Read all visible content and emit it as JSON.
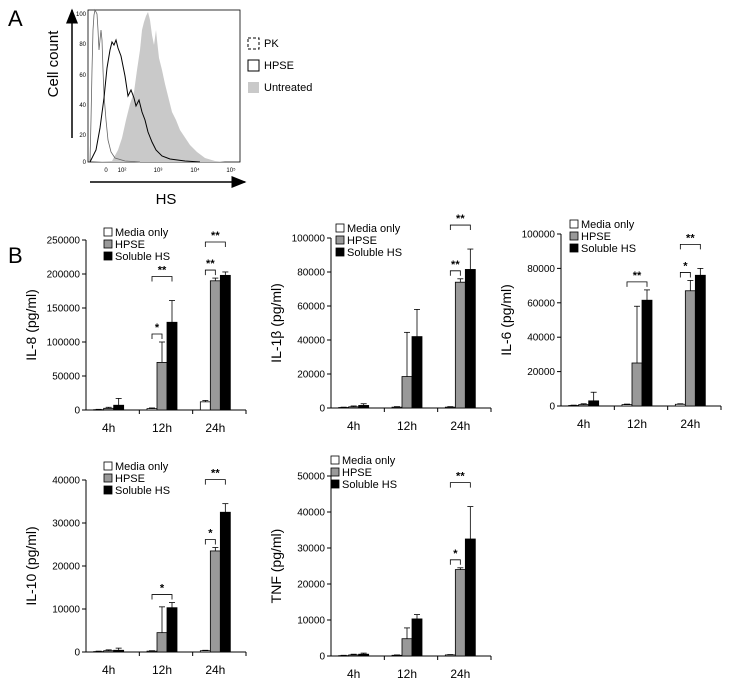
{
  "panel_a": {
    "letter": "A",
    "ylabel": "Cell count",
    "xlabel": "HS",
    "yticks": [
      "100",
      "80",
      "60",
      "40",
      "20",
      "0"
    ],
    "xticks": [
      "0",
      "10²",
      "10³",
      "10⁴",
      "10⁵"
    ],
    "legend": [
      {
        "label": "PK",
        "style": "dashed"
      },
      {
        "label": "HPSE",
        "style": "open"
      },
      {
        "label": "Untreated",
        "style": "filled"
      }
    ]
  },
  "panel_b": {
    "letter": "B"
  },
  "colors": {
    "media": "#ffffff",
    "hpse": "#999999",
    "soluble": "#000000",
    "untreated": "#c9c9c9"
  },
  "chart_data": [
    {
      "id": "il8",
      "type": "bar",
      "ylabel": "IL-8 (pg/ml)",
      "categories": [
        "4h",
        "12h",
        "24h"
      ],
      "ylim": [
        0,
        250000
      ],
      "yticks": [
        "0",
        "50000",
        "100000",
        "150000",
        "200000",
        "250000"
      ],
      "legend": [
        "Media only",
        "HPSE",
        "Soluble HS"
      ],
      "series": [
        {
          "name": "Media only",
          "values": [
            500,
            2000,
            12000
          ],
          "errors": [
            500,
            1000,
            2000
          ]
        },
        {
          "name": "HPSE",
          "values": [
            2500,
            70000,
            190000
          ],
          "errors": [
            1500,
            30000,
            4000
          ]
        },
        {
          "name": "Soluble HS",
          "values": [
            7000,
            129000,
            198000
          ],
          "errors": [
            10000,
            32000,
            5000
          ]
        }
      ],
      "significance": [
        {
          "category": 1,
          "from": 0,
          "to": 1,
          "label": "*"
        },
        {
          "category": 1,
          "from": 0,
          "to": 2,
          "label": "**"
        },
        {
          "category": 2,
          "from": 0,
          "to": 1,
          "label": "**"
        },
        {
          "category": 2,
          "from": 0,
          "to": 2,
          "label": "**"
        }
      ]
    },
    {
      "id": "il1b",
      "type": "bar",
      "ylabel": "IL-1β (pg/ml)",
      "categories": [
        "4h",
        "12h",
        "24h"
      ],
      "ylim": [
        0,
        100000
      ],
      "yticks": [
        "0",
        "20000",
        "40000",
        "60000",
        "80000",
        "100000"
      ],
      "legend": [
        "Media only",
        "HPSE",
        "Soluble HS"
      ],
      "series": [
        {
          "name": "Media only",
          "values": [
            300,
            500,
            500
          ],
          "errors": [
            200,
            300,
            300
          ]
        },
        {
          "name": "HPSE",
          "values": [
            700,
            18500,
            74000
          ],
          "errors": [
            500,
            26000,
            2000
          ]
        },
        {
          "name": "Soluble HS",
          "values": [
            1500,
            42000,
            81500
          ],
          "errors": [
            1000,
            16000,
            12000
          ]
        }
      ],
      "significance": [
        {
          "category": 2,
          "from": 0,
          "to": 1,
          "label": "**"
        },
        {
          "category": 2,
          "from": 0,
          "to": 2,
          "label": "**"
        }
      ]
    },
    {
      "id": "il6",
      "type": "bar",
      "ylabel": "IL-6 (pg/ml)",
      "categories": [
        "4h",
        "12h",
        "24h"
      ],
      "ylim": [
        0,
        100000
      ],
      "yticks": [
        "0",
        "20000",
        "40000",
        "60000",
        "80000",
        "100000"
      ],
      "legend": [
        "Media only",
        "HPSE",
        "Soluble HS"
      ],
      "series": [
        {
          "name": "Media only",
          "values": [
            300,
            800,
            1000
          ],
          "errors": [
            200,
            300,
            300
          ]
        },
        {
          "name": "HPSE",
          "values": [
            800,
            25000,
            67000
          ],
          "errors": [
            500,
            33000,
            6000
          ]
        },
        {
          "name": "Soluble HS",
          "values": [
            3000,
            61500,
            76000
          ],
          "errors": [
            5000,
            6000,
            4000
          ]
        }
      ],
      "significance": [
        {
          "category": 1,
          "from": 0,
          "to": 2,
          "label": "**"
        },
        {
          "category": 2,
          "from": 0,
          "to": 1,
          "label": "*"
        },
        {
          "category": 2,
          "from": 0,
          "to": 2,
          "label": "**"
        }
      ]
    },
    {
      "id": "il10",
      "type": "bar",
      "ylabel": "IL-10 (pg/ml)",
      "categories": [
        "4h",
        "12h",
        "24h"
      ],
      "ylim": [
        0,
        40000
      ],
      "yticks": [
        "0",
        "10000",
        "20000",
        "30000",
        "40000"
      ],
      "legend": [
        "Media only",
        "HPSE",
        "Soluble HS"
      ],
      "series": [
        {
          "name": "Media only",
          "values": [
            100,
            200,
            300
          ],
          "errors": [
            100,
            100,
            100
          ]
        },
        {
          "name": "HPSE",
          "values": [
            300,
            4500,
            23500
          ],
          "errors": [
            200,
            6000,
            800
          ]
        },
        {
          "name": "Soluble HS",
          "values": [
            400,
            10300,
            32500
          ],
          "errors": [
            500,
            1200,
            2000
          ]
        }
      ],
      "significance": [
        {
          "category": 1,
          "from": 0,
          "to": 2,
          "label": "*"
        },
        {
          "category": 2,
          "from": 0,
          "to": 1,
          "label": "*"
        },
        {
          "category": 2,
          "from": 0,
          "to": 2,
          "label": "**"
        }
      ]
    },
    {
      "id": "tnf",
      "type": "bar",
      "ylabel": "TNF (pg/ml)",
      "categories": [
        "4h",
        "12h",
        "24h"
      ],
      "ylim": [
        0,
        50000
      ],
      "yticks": [
        "0",
        "10000",
        "20000",
        "30000",
        "40000",
        "50000"
      ],
      "legend": [
        "Media only",
        "HPSE",
        "Soluble HS"
      ],
      "series": [
        {
          "name": "Media only",
          "values": [
            100,
            200,
            300
          ],
          "errors": [
            100,
            100,
            100
          ]
        },
        {
          "name": "HPSE",
          "values": [
            300,
            4800,
            24000
          ],
          "errors": [
            200,
            3000,
            500
          ]
        },
        {
          "name": "Soluble HS",
          "values": [
            500,
            10300,
            32500
          ],
          "errors": [
            300,
            1200,
            9000
          ]
        }
      ],
      "significance": [
        {
          "category": 2,
          "from": 0,
          "to": 1,
          "label": "*"
        },
        {
          "category": 2,
          "from": 0,
          "to": 2,
          "label": "**"
        }
      ]
    }
  ]
}
